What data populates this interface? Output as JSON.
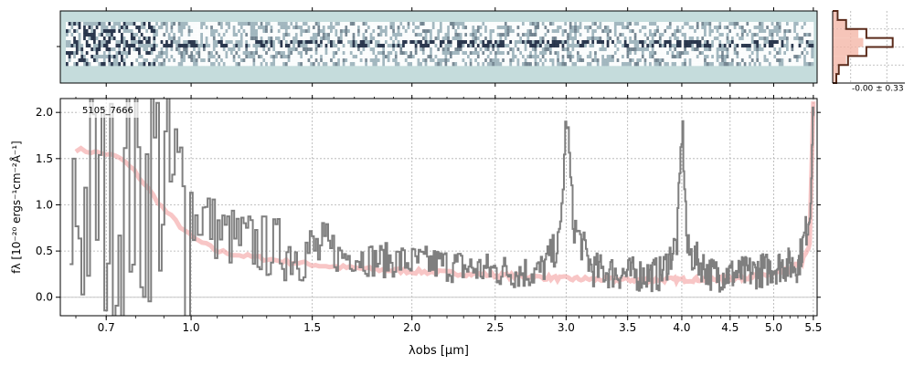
{
  "chart_data": [
    {
      "type": "image",
      "panel": "2d-spectrum",
      "colormap": [
        "#c5dcdc",
        "#ffffff",
        "#1c2840"
      ]
    },
    {
      "type": "histogram",
      "panel": "pixel-distribution",
      "annotation": "-0.00 ± 0.33",
      "bins": [
        -1.0,
        -0.75,
        -0.5,
        -0.25,
        0.0,
        0.25,
        0.5,
        0.75,
        1.0
      ],
      "data_counts": [
        0.06,
        0.1,
        0.25,
        0.55,
        0.98,
        0.55,
        0.22,
        0.08
      ],
      "model_counts": [
        0.04,
        0.08,
        0.22,
        0.42,
        0.5,
        0.42,
        0.2,
        0.06
      ],
      "colors": {
        "data": "#5a2a1a",
        "model": "#f4b6a8"
      }
    },
    {
      "type": "line",
      "label": "5105_7666",
      "xlabel": "λobs [μm]",
      "ylabel": "fλ [10⁻²⁰ ergs⁻¹cm⁻²Å⁻¹]",
      "xlim": [
        0.55,
        5.55
      ],
      "ylim": [
        -0.2,
        2.15
      ],
      "x_scale": "asinh",
      "grid": true,
      "xticks": [
        0.7,
        1.0,
        1.5,
        2.0,
        2.5,
        3.0,
        3.5,
        4.0,
        4.5,
        5.0,
        5.5
      ],
      "xtick_labels": [
        "0.7",
        "1.0",
        "1.5",
        "2.0",
        "2.5",
        "3.0",
        "3.5",
        "4.0",
        "4.5",
        "5.0",
        "5.5"
      ],
      "yticks": [
        0.0,
        0.5,
        1.0,
        1.5,
        2.0
      ],
      "ytick_labels": [
        "0.0",
        "0.5",
        "1.0",
        "1.5",
        "2.0"
      ],
      "series": [
        {
          "kind": "data",
          "color": "#7f7f7f",
          "x": [
            0.58,
            0.62,
            0.66,
            0.7,
            0.74,
            0.78,
            0.82,
            0.86,
            0.9,
            0.95,
            1.0,
            1.05,
            1.1,
            1.2,
            1.3,
            1.4,
            1.5,
            1.6,
            1.7,
            1.8,
            1.9,
            2.0,
            2.2,
            2.4,
            2.6,
            2.8,
            2.95,
            3.0,
            3.05,
            3.2,
            3.5,
            3.8,
            3.95,
            4.0,
            4.05,
            4.3,
            4.6,
            4.9,
            5.1,
            5.3,
            5.45,
            5.5
          ],
          "y": [
            1.0,
            0.9,
            1.1,
            0.9,
            0.95,
            1.2,
            1.0,
            1.5,
            1.2,
            1.0,
            0.8,
            0.9,
            0.7,
            0.6,
            0.55,
            0.5,
            0.5,
            0.45,
            0.45,
            0.4,
            0.4,
            0.38,
            0.35,
            0.3,
            0.28,
            0.27,
            0.6,
            2.0,
            0.8,
            0.3,
            0.25,
            0.25,
            0.6,
            1.9,
            0.5,
            0.25,
            0.25,
            0.3,
            0.35,
            0.35,
            0.9,
            2.1
          ]
        },
        {
          "kind": "model",
          "color": "#f4a0a0",
          "x": [
            0.6,
            0.7,
            0.75,
            0.8,
            0.85,
            0.9,
            0.95,
            1.0,
            1.1,
            1.2,
            1.4,
            1.6,
            1.8,
            2.0,
            2.5,
            3.0,
            3.5,
            4.0,
            4.5,
            5.0,
            5.2,
            5.35,
            5.45,
            5.5
          ],
          "y": [
            1.6,
            1.55,
            1.5,
            1.35,
            1.15,
            0.95,
            0.8,
            0.65,
            0.5,
            0.45,
            0.38,
            0.33,
            0.3,
            0.28,
            0.24,
            0.2,
            0.19,
            0.19,
            0.2,
            0.25,
            0.3,
            0.38,
            0.55,
            2.1
          ]
        }
      ],
      "zero_line": 0.0,
      "zero_line_color": "#c8c8c8"
    }
  ]
}
